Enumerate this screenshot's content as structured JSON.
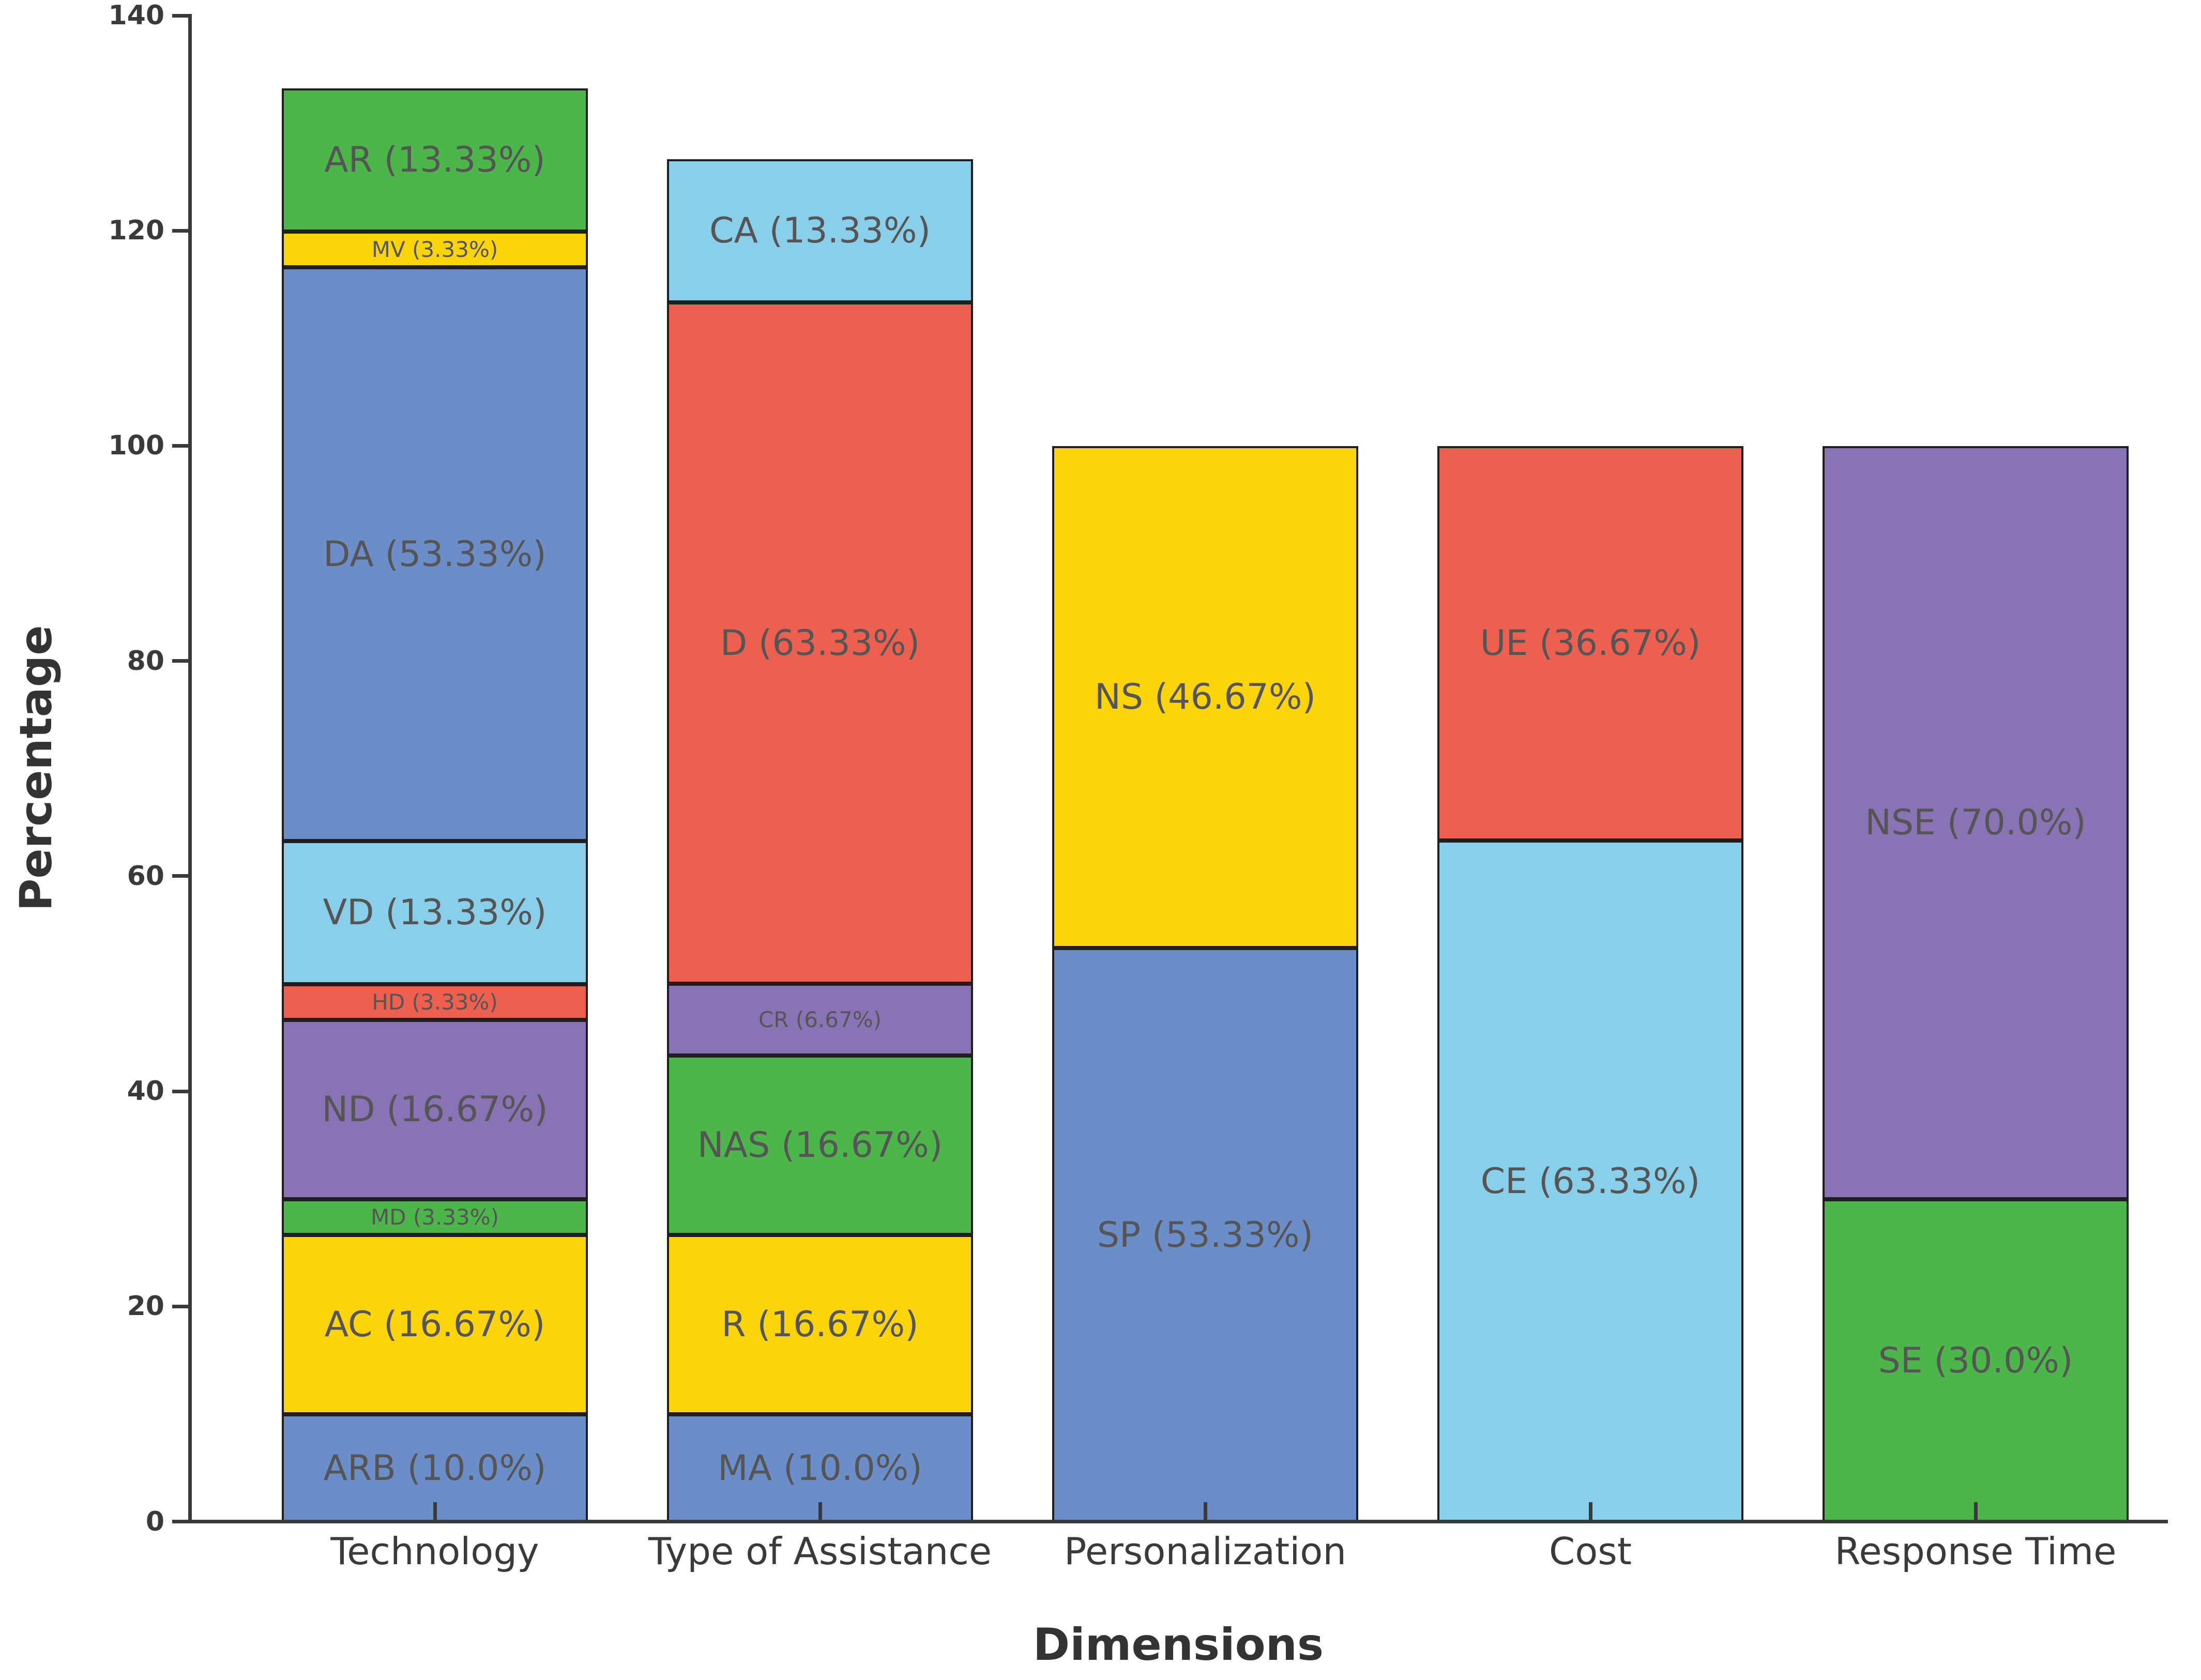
{
  "chart_data": {
    "type": "bar",
    "stacked": true,
    "title": "",
    "xlabel": "Dimensions",
    "ylabel": "Percentage",
    "ylim": [
      0,
      140
    ],
    "yticks": [
      0,
      20,
      40,
      60,
      80,
      100,
      120,
      140
    ],
    "grid": false,
    "legend": "none",
    "categories": [
      "Technology",
      "Type of Assistance",
      "Personalization",
      "Cost",
      "Response Time"
    ],
    "bars": [
      {
        "category": "Technology",
        "segments": [
          {
            "code": "ARB",
            "value": "10.0",
            "color": "blue"
          },
          {
            "code": "AC",
            "value": "16.67",
            "color": "gold"
          },
          {
            "code": "MD",
            "value": "3.33",
            "color": "green"
          },
          {
            "code": "ND",
            "value": "16.67",
            "color": "purple"
          },
          {
            "code": "HD",
            "value": "3.33",
            "color": "red"
          },
          {
            "code": "VD",
            "value": "13.33",
            "color": "skyblue"
          },
          {
            "code": "DA",
            "value": "53.33",
            "color": "blue"
          },
          {
            "code": "MV",
            "value": "3.33",
            "color": "gold"
          },
          {
            "code": "AR",
            "value": "13.33",
            "color": "green"
          }
        ]
      },
      {
        "category": "Type of Assistance",
        "segments": [
          {
            "code": "MA",
            "value": "10.0",
            "color": "blue"
          },
          {
            "code": "R",
            "value": "16.67",
            "color": "gold"
          },
          {
            "code": "NAS",
            "value": "16.67",
            "color": "green"
          },
          {
            "code": "CR",
            "value": "6.67",
            "color": "purple"
          },
          {
            "code": "D",
            "value": "63.33",
            "color": "red"
          },
          {
            "code": "CA",
            "value": "13.33",
            "color": "skyblue"
          }
        ]
      },
      {
        "category": "Personalization",
        "segments": [
          {
            "code": "SP",
            "value": "53.33",
            "color": "blue"
          },
          {
            "code": "NS",
            "value": "46.67",
            "color": "gold"
          }
        ]
      },
      {
        "category": "Cost",
        "segments": [
          {
            "code": "CE",
            "value": "63.33",
            "color": "skyblue"
          },
          {
            "code": "UE",
            "value": "36.67",
            "color": "red"
          }
        ]
      },
      {
        "category": "Response Time",
        "segments": [
          {
            "code": "SE",
            "value": "30.0",
            "color": "green"
          },
          {
            "code": "NSE",
            "value": "70.0",
            "color": "purple"
          }
        ]
      }
    ],
    "palette": {
      "blue": "#6b8ec8",
      "gold": "#fbd40c",
      "green": "#4cb64a",
      "purple": "#8874b4",
      "red": "#ed5f4e",
      "skyblue": "#89cfea"
    },
    "label_color": "#555555",
    "edge_color": "#1f1f1f",
    "axis_color": "#3a3a3a"
  }
}
